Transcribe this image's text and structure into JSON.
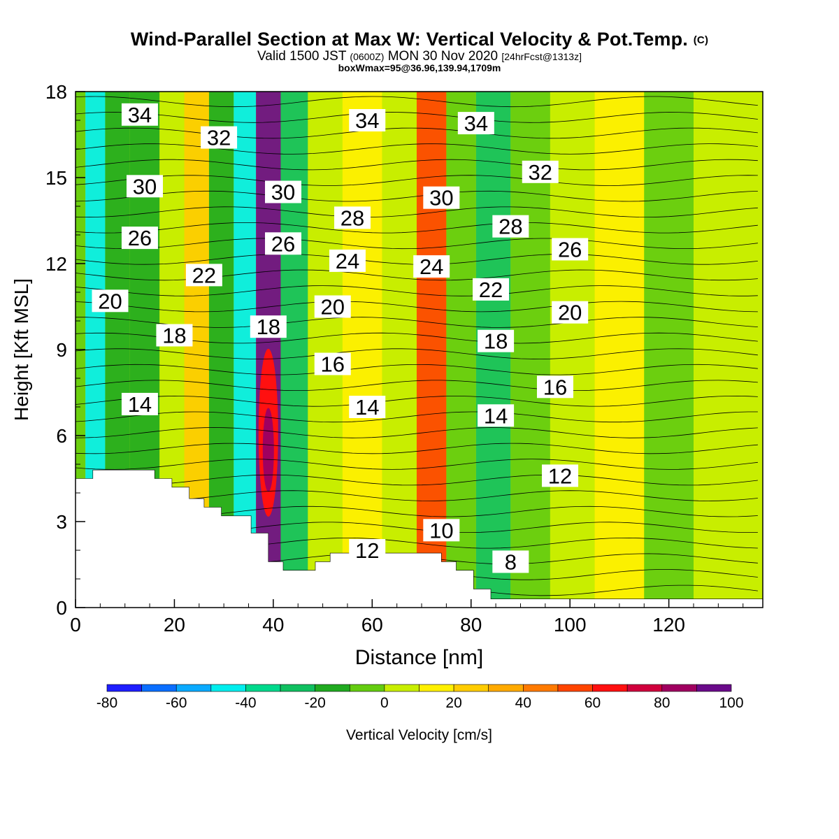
{
  "header": {
    "title": "Wind-Parallel Section at Max W: Vertical Velocity & Pot.Temp.",
    "copyright": "(C)",
    "valid_prefix": "Valid 1500 JST",
    "valid_zulu": "(0600Z)",
    "valid_date": "MON 30 Nov 2020",
    "forecast": "[24hrFcst@1313z]",
    "boxinfo": "boxWmax=95@36.96,139.94,1709m"
  },
  "chart_data": {
    "type": "heatmap",
    "title": "Wind-Parallel Section at Max W: Vertical Velocity & Pot.Temp.",
    "xlabel": "Distance [nm]",
    "ylabel": "Height [Kft MSL]",
    "xlim": [
      0,
      139
    ],
    "ylim": [
      0,
      18
    ],
    "x_ticks": [
      0,
      20,
      40,
      60,
      80,
      100,
      120
    ],
    "y_ticks": [
      0,
      3,
      6,
      9,
      12,
      15,
      18
    ],
    "colorbar": {
      "label": "Vertical Velocity [cm/s]",
      "ticks": [
        -80,
        -60,
        -40,
        -20,
        0,
        20,
        40,
        60,
        80,
        100
      ],
      "levels": [
        -80,
        -70,
        -60,
        -50,
        -40,
        -30,
        -20,
        -10,
        0,
        10,
        20,
        30,
        40,
        50,
        60,
        70,
        80,
        90,
        100
      ],
      "colors": [
        "#1e1eff",
        "#0a6eff",
        "#0aaaff",
        "#00eeee",
        "#00d98c",
        "#10c060",
        "#20aa20",
        "#64cc10",
        "#c8ee00",
        "#fff000",
        "#ffcc00",
        "#ffaa00",
        "#ff7a00",
        "#ff4400",
        "#ff1010",
        "#d0003c",
        "#a00060",
        "#6a0a8a"
      ]
    },
    "vertical_velocity_bands": [
      {
        "x": 0,
        "value": -10
      },
      {
        "x": 4,
        "value": -45
      },
      {
        "x": 8,
        "value": -20
      },
      {
        "x": 14,
        "value": -15
      },
      {
        "x": 20,
        "value": 5
      },
      {
        "x": 24,
        "value": 25
      },
      {
        "x": 30,
        "value": -20
      },
      {
        "x": 34,
        "value": -45
      },
      {
        "x": 39,
        "value": 95
      },
      {
        "x": 44,
        "value": -25
      },
      {
        "x": 50,
        "value": 5
      },
      {
        "x": 58,
        "value": 15
      },
      {
        "x": 66,
        "value": 0
      },
      {
        "x": 72,
        "value": 50
      },
      {
        "x": 78,
        "value": -10
      },
      {
        "x": 84,
        "value": -25
      },
      {
        "x": 92,
        "value": -5
      },
      {
        "x": 100,
        "value": 5
      },
      {
        "x": 110,
        "value": 10
      },
      {
        "x": 120,
        "value": -5
      },
      {
        "x": 130,
        "value": 0
      }
    ],
    "max_w": {
      "value": 95,
      "x": 39,
      "height": 5.5
    },
    "theta_contour_labels": [
      {
        "text": "34",
        "x": 13,
        "y": 17.2
      },
      {
        "text": "34",
        "x": 59,
        "y": 17.0
      },
      {
        "text": "34",
        "x": 81,
        "y": 16.9
      },
      {
        "text": "32",
        "x": 29,
        "y": 16.4
      },
      {
        "text": "32",
        "x": 94,
        "y": 15.2
      },
      {
        "text": "30",
        "x": 14,
        "y": 14.7
      },
      {
        "text": "30",
        "x": 42,
        "y": 14.5
      },
      {
        "text": "30",
        "x": 74,
        "y": 14.3
      },
      {
        "text": "28",
        "x": 56,
        "y": 13.6
      },
      {
        "text": "28",
        "x": 88,
        "y": 13.3
      },
      {
        "text": "26",
        "x": 13,
        "y": 12.9
      },
      {
        "text": "26",
        "x": 42,
        "y": 12.7
      },
      {
        "text": "26",
        "x": 100,
        "y": 12.5
      },
      {
        "text": "24",
        "x": 55,
        "y": 12.1
      },
      {
        "text": "24",
        "x": 72,
        "y": 11.9
      },
      {
        "text": "22",
        "x": 26,
        "y": 11.6
      },
      {
        "text": "22",
        "x": 84,
        "y": 11.1
      },
      {
        "text": "20",
        "x": 7,
        "y": 10.7
      },
      {
        "text": "20",
        "x": 52,
        "y": 10.5
      },
      {
        "text": "20",
        "x": 100,
        "y": 10.3
      },
      {
        "text": "18",
        "x": 20,
        "y": 9.5
      },
      {
        "text": "18",
        "x": 39,
        "y": 9.8
      },
      {
        "text": "18",
        "x": 85,
        "y": 9.3
      },
      {
        "text": "16",
        "x": 52,
        "y": 8.5
      },
      {
        "text": "16",
        "x": 97,
        "y": 7.7
      },
      {
        "text": "14",
        "x": 13,
        "y": 7.1
      },
      {
        "text": "14",
        "x": 59,
        "y": 7.0
      },
      {
        "text": "14",
        "x": 85,
        "y": 6.7
      },
      {
        "text": "12",
        "x": 98,
        "y": 4.6
      },
      {
        "text": "12",
        "x": 59,
        "y": 2.0
      },
      {
        "text": "10",
        "x": 74,
        "y": 2.7
      },
      {
        "text": "8",
        "x": 88,
        "y": 1.6
      }
    ],
    "terrain_profile": [
      [
        0,
        4.5
      ],
      [
        3.5,
        4.5
      ],
      [
        3.5,
        4.8
      ],
      [
        16,
        4.8
      ],
      [
        16,
        4.5
      ],
      [
        19.5,
        4.5
      ],
      [
        19.5,
        4.2
      ],
      [
        23,
        4.2
      ],
      [
        23,
        3.8
      ],
      [
        26,
        3.8
      ],
      [
        26,
        3.5
      ],
      [
        29.5,
        3.5
      ],
      [
        29.5,
        3.2
      ],
      [
        35.5,
        3.2
      ],
      [
        35.5,
        2.6
      ],
      [
        39,
        2.6
      ],
      [
        39,
        1.6
      ],
      [
        42,
        1.6
      ],
      [
        42,
        1.3
      ],
      [
        48.5,
        1.3
      ],
      [
        48.5,
        1.6
      ],
      [
        51.5,
        1.6
      ],
      [
        51.5,
        1.9
      ],
      [
        64.5,
        1.9
      ],
      [
        64.5,
        1.9
      ],
      [
        74,
        1.9
      ],
      [
        74,
        1.6
      ],
      [
        77,
        1.6
      ],
      [
        77,
        1.3
      ],
      [
        80.5,
        1.3
      ],
      [
        80.5,
        0.65
      ],
      [
        84,
        0.65
      ],
      [
        84,
        0.3
      ],
      [
        139,
        0.3
      ]
    ]
  }
}
